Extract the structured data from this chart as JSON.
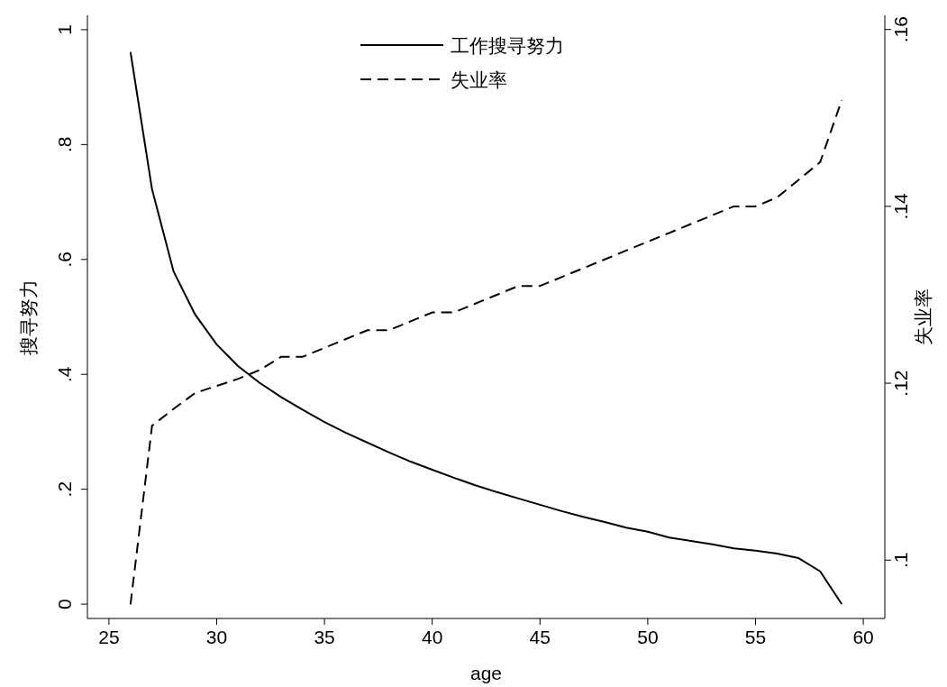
{
  "chart_data": {
    "type": "line",
    "xlabel": "age",
    "ylabel": "搜寻努力",
    "y2label": "失业率",
    "legend": "top",
    "grid": false,
    "x": [
      26,
      27,
      28,
      29,
      30,
      31,
      32,
      33,
      34,
      35,
      36,
      37,
      38,
      39,
      40,
      41,
      42,
      43,
      44,
      45,
      46,
      47,
      48,
      49,
      50,
      51,
      52,
      53,
      54,
      55,
      56,
      57,
      58,
      59
    ],
    "xlim": [
      24,
      61
    ],
    "xticks": [
      25,
      30,
      35,
      40,
      45,
      50,
      55,
      60
    ],
    "ylim": [
      -0.025,
      1.025
    ],
    "yticks": [
      {
        "value": 0,
        "label": "0"
      },
      {
        "value": 0.2,
        "label": ".2"
      },
      {
        "value": 0.4,
        "label": ".4"
      },
      {
        "value": 0.6,
        "label": ".6"
      },
      {
        "value": 0.8,
        "label": ".8"
      },
      {
        "value": 1,
        "label": "1"
      }
    ],
    "y2lim": [
      0.0934,
      0.1616
    ],
    "y2ticks": [
      {
        "value": 0.1,
        "label": ".1"
      },
      {
        "value": 0.12,
        "label": ".12"
      },
      {
        "value": 0.14,
        "label": ".14"
      },
      {
        "value": 0.16,
        "label": ".16"
      }
    ],
    "series": [
      {
        "name": "工作搜寻努力",
        "color": "#000000",
        "line_style": "solid",
        "values": [
          0.961,
          0.722,
          0.579,
          0.504,
          0.452,
          0.414,
          0.385,
          0.36,
          0.338,
          0.317,
          0.298,
          0.281,
          0.264,
          0.248,
          0.234,
          0.22,
          0.207,
          0.195,
          0.184,
          0.173,
          0.162,
          0.152,
          0.143,
          0.133,
          0.126,
          0.116,
          0.11,
          0.104,
          0.097,
          0.093,
          0.088,
          0.08,
          0.057,
          0.0
        ]
      },
      {
        "name": "失业率",
        "color": "#000000",
        "line_style": "dashed",
        "axis": "y2",
        "values": [
          0.095,
          0.1152,
          0.1171,
          0.1189,
          0.1197,
          0.1205,
          0.1215,
          0.123,
          0.123,
          0.124,
          0.125,
          0.126,
          0.126,
          0.127,
          0.128,
          0.128,
          0.129,
          0.13,
          0.131,
          0.131,
          0.132,
          0.133,
          0.134,
          0.135,
          0.136,
          0.137,
          0.138,
          0.139,
          0.14,
          0.14,
          0.141,
          0.143,
          0.145,
          0.152
        ]
      }
    ]
  }
}
